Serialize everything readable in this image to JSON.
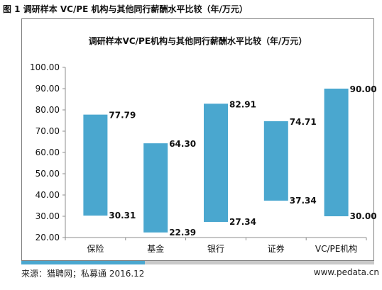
{
  "figure_title": "图 1 调研样本 VC/PE 机构与其他同行薪酬水平比较（年/万元）",
  "footer": {
    "source": "来源：猎聘网；私募通 2016.12",
    "website": "www.pedata.cn"
  },
  "colors": {
    "bar": "#4aa7cf",
    "axis": "#8c8c8c",
    "accent": "#4aa7cf",
    "bar_track": "#c9c9c9"
  },
  "chart_data": {
    "type": "bar",
    "subtype": "floating-range",
    "title": "调研样本VC/PE机构与其他同行薪酬水平比较（年/万元）",
    "xlabel": "",
    "ylabel": "",
    "ylim": [
      20,
      100
    ],
    "yticks": [
      "20.00",
      "30.00",
      "40.00",
      "50.00",
      "60.00",
      "70.00",
      "80.00",
      "90.00",
      "100.00"
    ],
    "categories": [
      "保险",
      "基金",
      "银行",
      "证券",
      "VC/PE机构"
    ],
    "low": [
      30.31,
      22.39,
      27.34,
      37.34,
      30.0
    ],
    "high": [
      77.79,
      64.3,
      82.91,
      74.71,
      90.0
    ],
    "low_labels": [
      "30.31",
      "22.39",
      "27.34",
      "37.34",
      "30.00"
    ],
    "high_labels": [
      "77.79",
      "64.30",
      "82.91",
      "74.71",
      "90.00"
    ],
    "grid": false,
    "legend": "none"
  }
}
